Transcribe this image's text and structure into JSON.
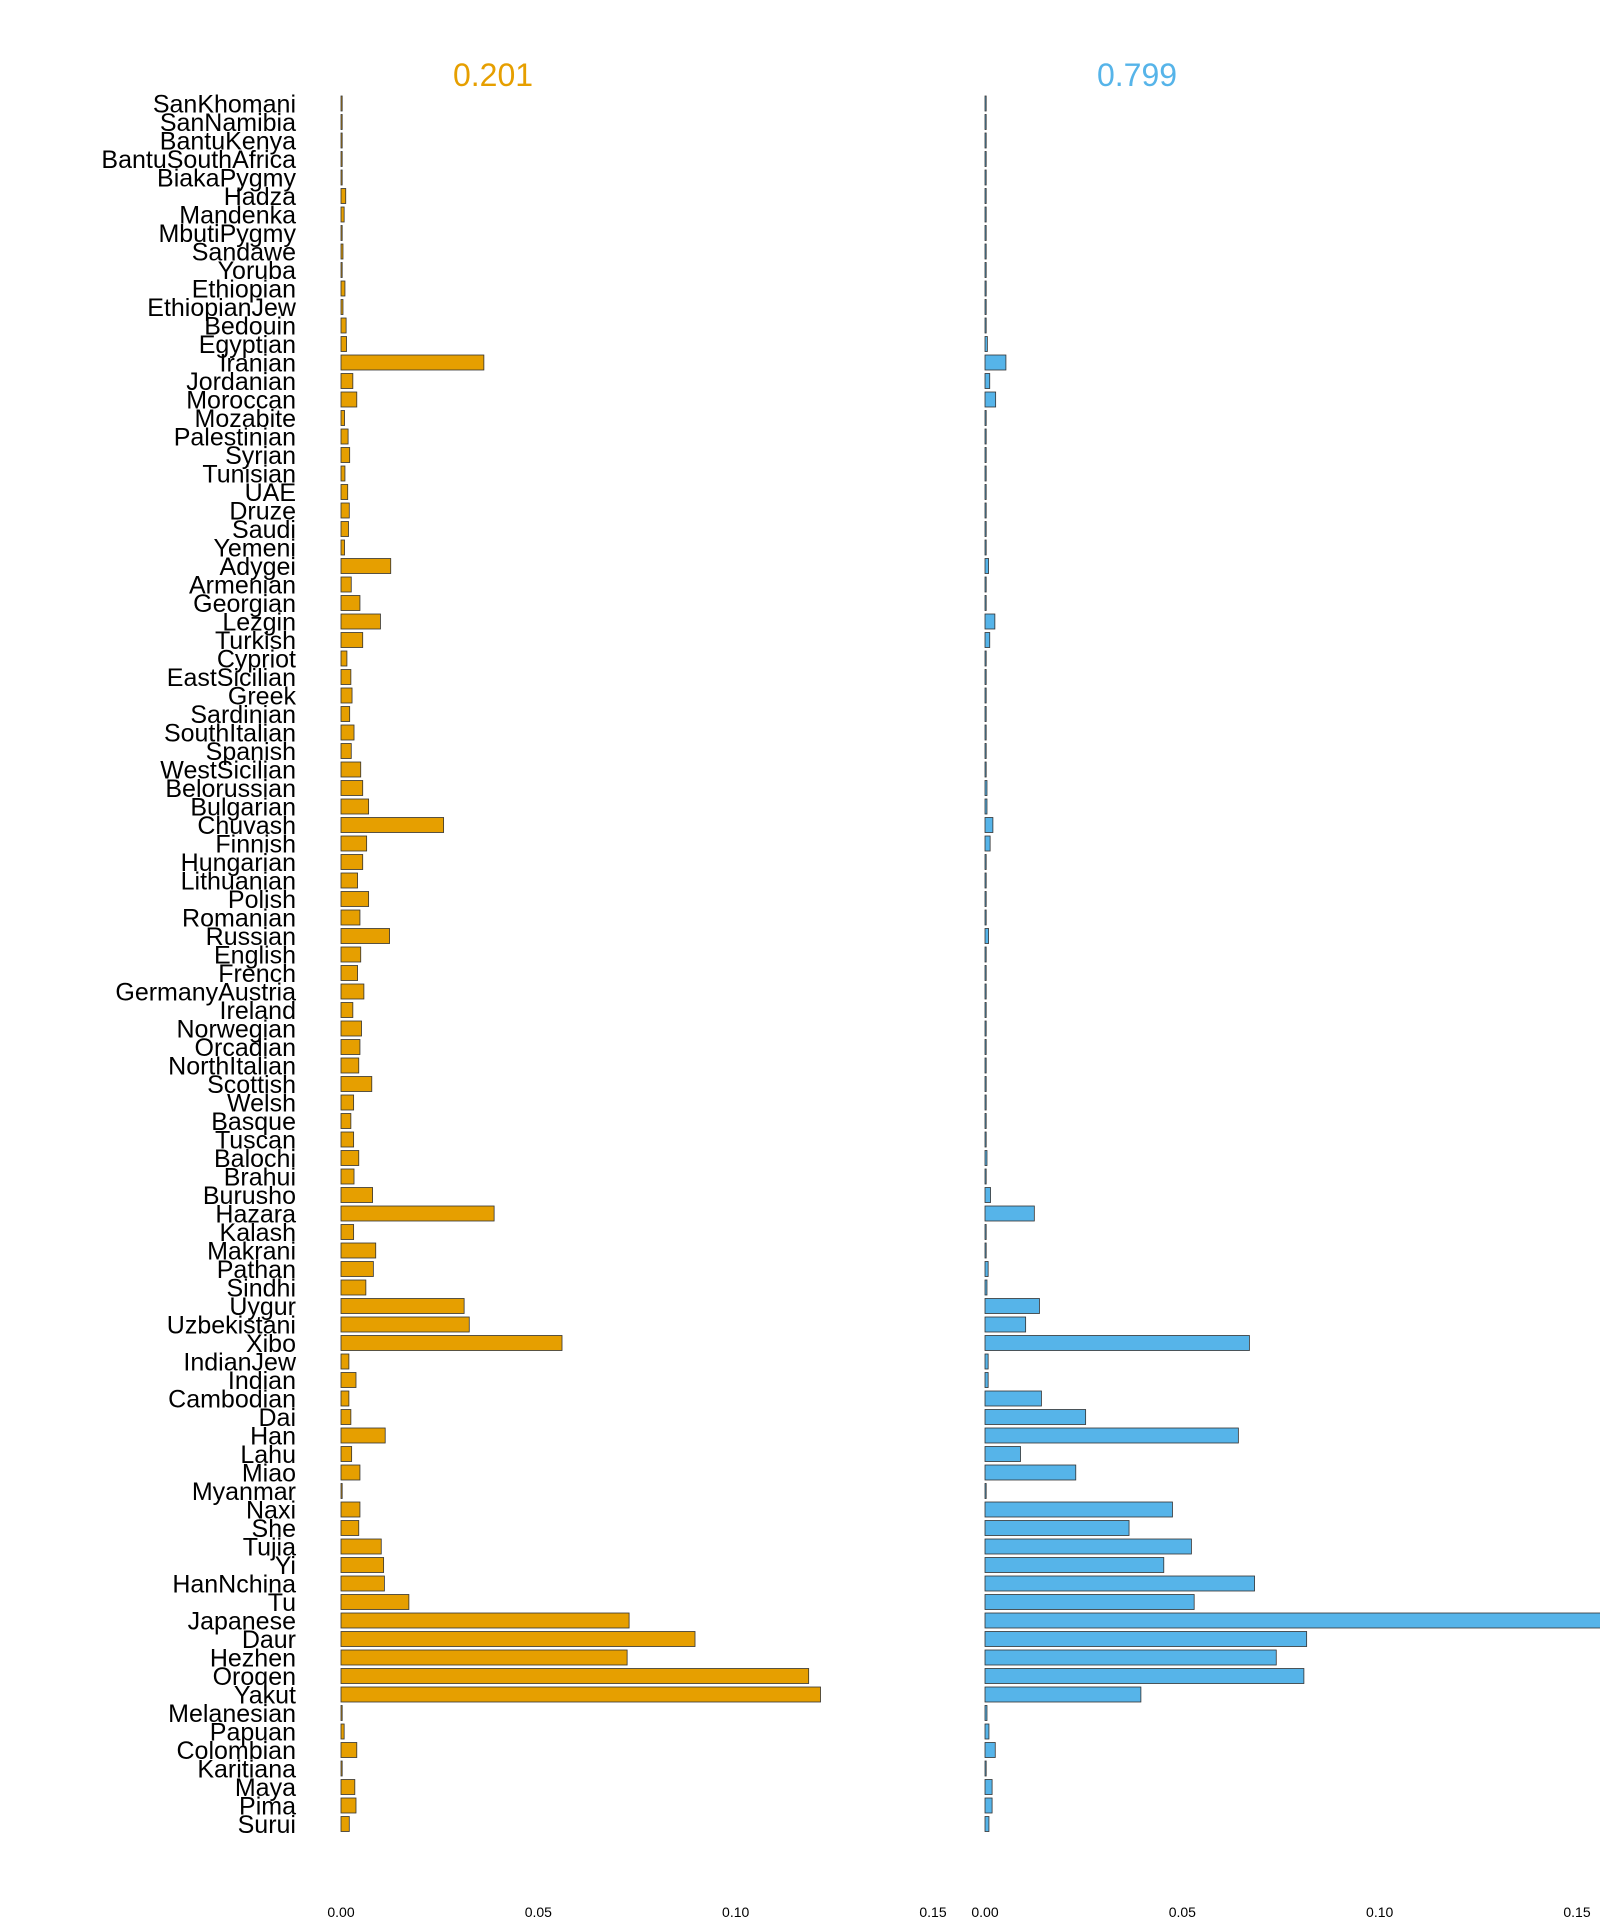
{
  "chart_data": {
    "type": "bar",
    "orientation": "horizontal",
    "categories": [
      "SanKhomani",
      "SanNamibia",
      "BantuKenya",
      "BantuSouthAfrica",
      "BiakaPygmy",
      "Hadza",
      "Mandenka",
      "MbutiPygmy",
      "Sandawe",
      "Yoruba",
      "Ethiopian",
      "EthiopianJew",
      "Bedouin",
      "Egyptian",
      "Iranian",
      "Jordanian",
      "Moroccan",
      "Mozabite",
      "Palestinian",
      "Syrian",
      "Tunisian",
      "UAE",
      "Druze",
      "Saudi",
      "Yemeni",
      "Adygei",
      "Armenian",
      "Georgian",
      "Lezgin",
      "Turkish",
      "Cypriot",
      "EastSicilian",
      "Greek",
      "Sardinian",
      "SouthItalian",
      "Spanish",
      "WestSicilian",
      "Belorussian",
      "Bulgarian",
      "Chuvash",
      "Finnish",
      "Hungarian",
      "Lithuanian",
      "Polish",
      "Romanian",
      "Russian",
      "English",
      "French",
      "GermanyAustria",
      "Ireland",
      "Norwegian",
      "Orcadian",
      "NorthItalian",
      "Scottish",
      "Welsh",
      "Basque",
      "Tuscan",
      "Balochi",
      "Brahui",
      "Burusho",
      "Hazara",
      "Kalash",
      "Makrani",
      "Pathan",
      "Sindhi",
      "Uygur",
      "Uzbekistani",
      "Xibo",
      "IndianJew",
      "Indian",
      "Cambodian",
      "Dai",
      "Han",
      "Lahu",
      "Miao",
      "Myanmar",
      "Naxi",
      "She",
      "Tujia",
      "Yi",
      "HanNchina",
      "Tu",
      "Japanese",
      "Daur",
      "Hezhen",
      "Oroqen",
      "Yakut",
      "Melanesian",
      "Papuan",
      "Colombian",
      "Karitiana",
      "Maya",
      "Pima",
      "Surui"
    ],
    "series": [
      {
        "name": "0.201",
        "color": "#E69F00",
        "values": [
          0.0003,
          0.0003,
          0.0003,
          0.0003,
          0.0003,
          0.0012,
          0.0008,
          0.0003,
          0.0005,
          0.0003,
          0.001,
          0.0005,
          0.0013,
          0.0014,
          0.0362,
          0.003,
          0.004,
          0.0009,
          0.0018,
          0.0022,
          0.001,
          0.0017,
          0.0021,
          0.0019,
          0.0009,
          0.0126,
          0.0026,
          0.0048,
          0.01,
          0.0055,
          0.0015,
          0.0025,
          0.0028,
          0.0022,
          0.0033,
          0.0026,
          0.005,
          0.0055,
          0.007,
          0.026,
          0.0065,
          0.0055,
          0.0042,
          0.007,
          0.0048,
          0.0123,
          0.005,
          0.0042,
          0.0058,
          0.003,
          0.0052,
          0.0048,
          0.0045,
          0.0078,
          0.0032,
          0.0025,
          0.0032,
          0.0045,
          0.0033,
          0.008,
          0.0388,
          0.0032,
          0.0088,
          0.0082,
          0.0063,
          0.0312,
          0.0325,
          0.056,
          0.002,
          0.0038,
          0.002,
          0.0025,
          0.0112,
          0.0027,
          0.0048,
          0.0003,
          0.0048,
          0.0045,
          0.0102,
          0.0108,
          0.011,
          0.0172,
          0.073,
          0.0897,
          0.0725,
          0.1185,
          0.1215,
          0.0003,
          0.0008,
          0.004,
          0.0003,
          0.0035,
          0.0038,
          0.0021
        ]
      },
      {
        "name": "0.799",
        "color": "#56B4E9",
        "values": [
          0.0003,
          0.0003,
          0.0003,
          0.0003,
          0.0003,
          0.0003,
          0.0003,
          0.0003,
          0.0003,
          0.0003,
          0.0003,
          0.0003,
          0.0003,
          0.0006,
          0.0053,
          0.0012,
          0.0027,
          0.0003,
          0.0003,
          0.0003,
          0.0003,
          0.0003,
          0.0003,
          0.0003,
          0.0003,
          0.0009,
          0.0003,
          0.0003,
          0.0025,
          0.0012,
          0.0003,
          0.0003,
          0.0003,
          0.0003,
          0.0003,
          0.0003,
          0.0003,
          0.0005,
          0.0005,
          0.002,
          0.0013,
          0.0003,
          0.0003,
          0.0003,
          0.0003,
          0.0009,
          0.0003,
          0.0003,
          0.0003,
          0.0003,
          0.0003,
          0.0003,
          0.0003,
          0.0003,
          0.0003,
          0.0003,
          0.0003,
          0.0005,
          0.0003,
          0.0014,
          0.0125,
          0.0003,
          0.0003,
          0.0008,
          0.0005,
          0.0138,
          0.0103,
          0.067,
          0.0008,
          0.0008,
          0.0143,
          0.0255,
          0.0642,
          0.009,
          0.023,
          0.0003,
          0.0475,
          0.0365,
          0.0523,
          0.0453,
          0.0683,
          0.053,
          0.156,
          0.0815,
          0.0738,
          0.0808,
          0.0395,
          0.0005,
          0.001,
          0.0026,
          0.0003,
          0.0018,
          0.0018,
          0.001
        ]
      }
    ],
    "xlim": [
      0,
      0.15
    ],
    "xticks": [
      "0.00",
      "0.05",
      "0.10",
      "0.15"
    ],
    "title": "",
    "xlabel": "",
    "ylabel": ""
  },
  "panels": [
    {
      "title": "0.201",
      "title_color": "#E69F00"
    },
    {
      "title": "0.799",
      "title_color": "#56B4E9"
    }
  ]
}
